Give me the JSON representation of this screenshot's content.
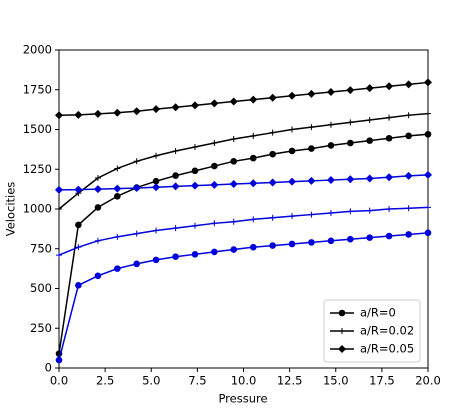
{
  "chart_data": {
    "type": "line",
    "xlabel": "Pressure",
    "ylabel": "Velocities",
    "x": [
      0,
      1.05,
      2.11,
      3.16,
      4.21,
      5.26,
      6.32,
      7.37,
      8.42,
      9.47,
      10.53,
      11.58,
      12.63,
      13.68,
      14.74,
      15.79,
      16.84,
      17.89,
      18.95,
      20
    ],
    "series": [
      {
        "name": "a/R=0",
        "color": "#000000",
        "marker": "o",
        "values": [
          90,
          900,
          1010,
          1080,
          1135,
          1175,
          1210,
          1240,
          1270,
          1300,
          1320,
          1345,
          1365,
          1380,
          1400,
          1415,
          1430,
          1445,
          1460,
          1470
        ]
      },
      {
        "name": "a/R=0.02",
        "color": "#000000",
        "marker": "+",
        "values": [
          1000,
          1100,
          1195,
          1255,
          1300,
          1335,
          1365,
          1390,
          1415,
          1440,
          1460,
          1480,
          1500,
          1515,
          1530,
          1545,
          1560,
          1575,
          1590,
          1600
        ]
      },
      {
        "name": "a/R=0.05",
        "color": "#000000",
        "marker": "D",
        "values": [
          1590,
          1592,
          1598,
          1605,
          1615,
          1628,
          1640,
          1652,
          1664,
          1676,
          1688,
          1700,
          1712,
          1724,
          1736,
          1748,
          1760,
          1772,
          1784,
          1796
        ]
      },
      {
        "color": "#0000dd",
        "marker": "o",
        "values": [
          50,
          520,
          580,
          625,
          655,
          680,
          700,
          715,
          730,
          745,
          760,
          770,
          780,
          790,
          800,
          810,
          820,
          830,
          840,
          850
        ]
      },
      {
        "color": "#0000dd",
        "marker": "+",
        "values": [
          710,
          760,
          800,
          825,
          845,
          865,
          880,
          895,
          910,
          920,
          935,
          945,
          955,
          965,
          975,
          985,
          990,
          1000,
          1005,
          1010
        ]
      },
      {
        "color": "#0000dd",
        "marker": "D",
        "values": [
          1120,
          1122,
          1125,
          1128,
          1132,
          1137,
          1142,
          1147,
          1152,
          1157,
          1162,
          1167,
          1172,
          1177,
          1182,
          1187,
          1192,
          1200,
          1208,
          1215
        ]
      }
    ],
    "xlim": [
      0,
      20
    ],
    "xticks": [
      {
        "value": 0,
        "label": "0.0"
      },
      {
        "value": 2.5,
        "label": "2.5"
      },
      {
        "value": 5,
        "label": "5.0"
      },
      {
        "value": 7.5,
        "label": "7.5"
      },
      {
        "value": 10,
        "label": "10.0"
      },
      {
        "value": 12.5,
        "label": "12.5"
      },
      {
        "value": 15,
        "label": "15.0"
      },
      {
        "value": 17.5,
        "label": "17.5"
      },
      {
        "value": 20,
        "label": "20.0"
      }
    ],
    "ylim": [
      0,
      2000
    ],
    "yticks": [
      0,
      250,
      500,
      750,
      1000,
      1250,
      1500,
      1750,
      2000
    ],
    "grid": false,
    "legend": "lower right"
  }
}
